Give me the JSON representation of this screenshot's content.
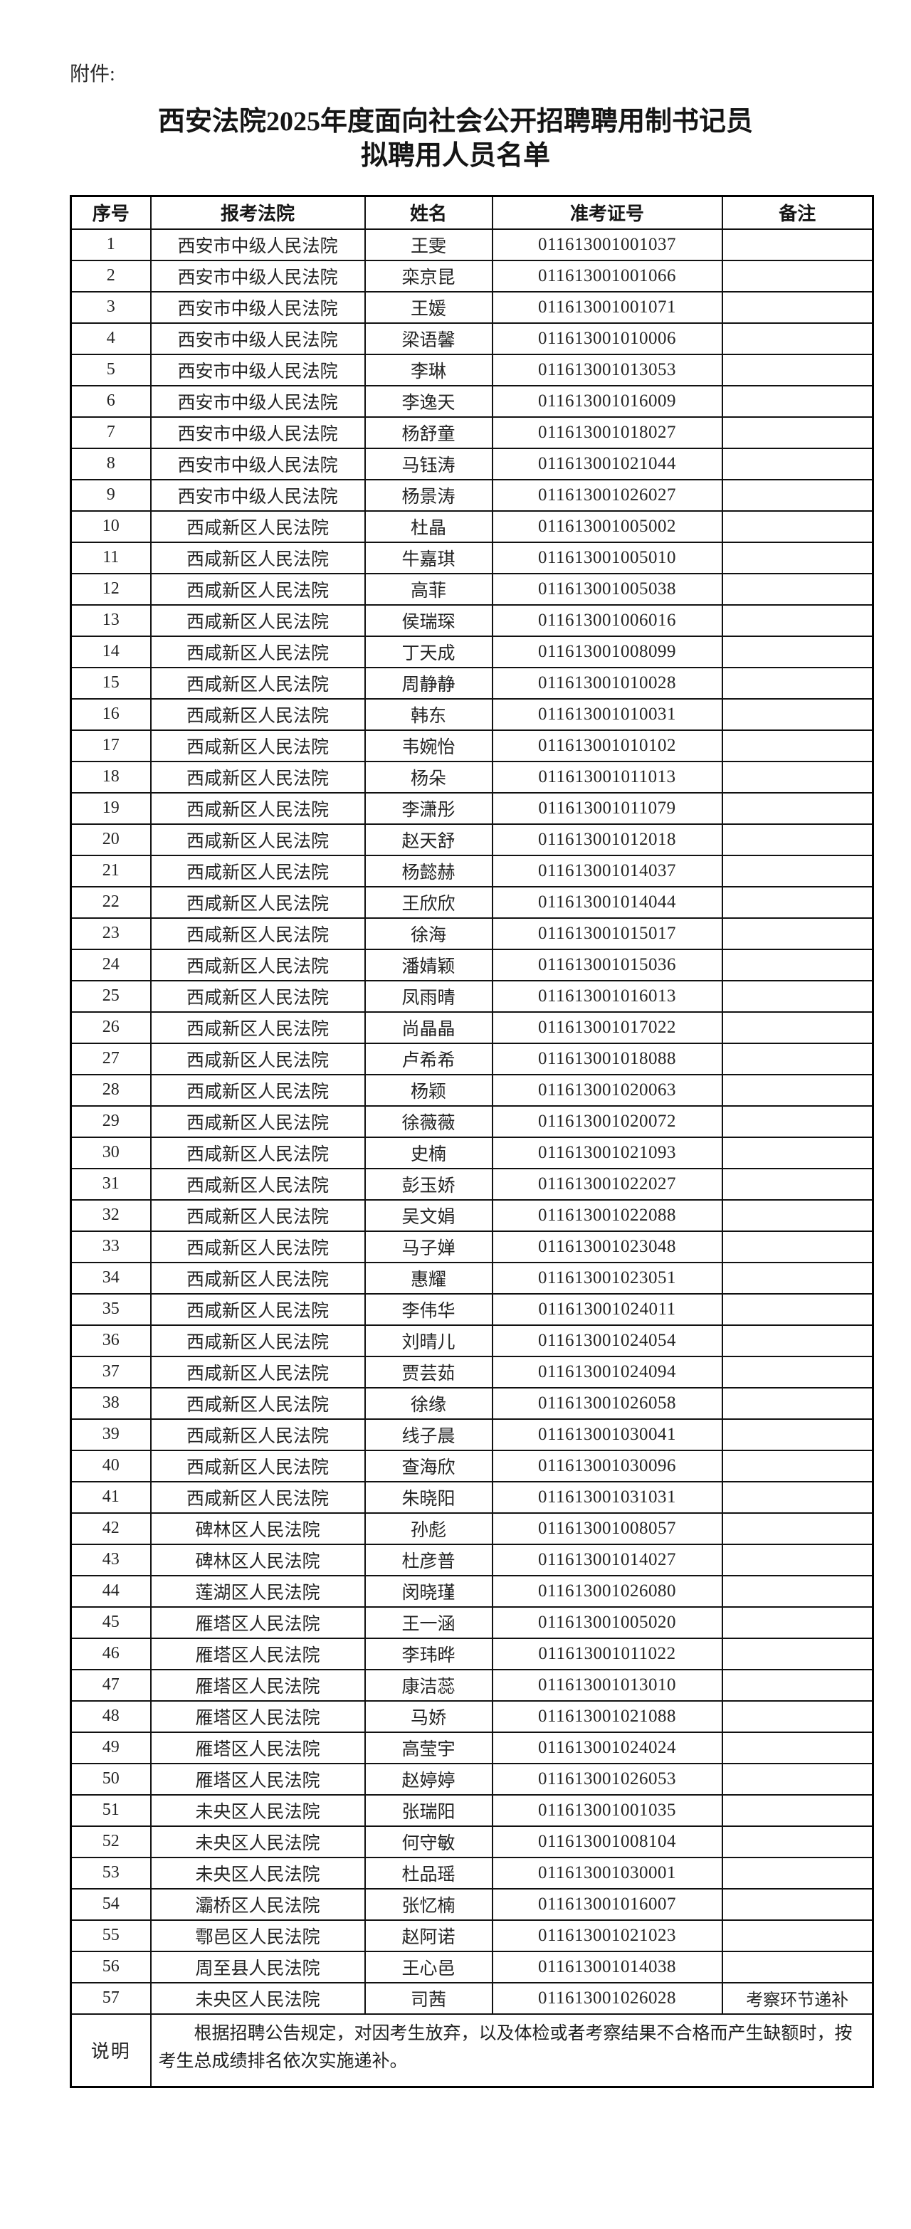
{
  "page": {
    "attachment_label": "附件:",
    "title_line1": "西安法院2025年度面向社会公开招聘聘用制书记员",
    "title_line2": "拟聘用人员名单"
  },
  "colors": {
    "background": "#ffffff",
    "text": "#1c1c1c",
    "border": "#111111"
  },
  "table": {
    "headers": [
      "序号",
      "报考法院",
      "姓名",
      "准考证号",
      "备注"
    ],
    "rows": [
      [
        "1",
        "西安市中级人民法院",
        "王雯",
        "011613001001037",
        ""
      ],
      [
        "2",
        "西安市中级人民法院",
        "栾京昆",
        "011613001001066",
        ""
      ],
      [
        "3",
        "西安市中级人民法院",
        "王媛",
        "011613001001071",
        ""
      ],
      [
        "4",
        "西安市中级人民法院",
        "梁语馨",
        "011613001010006",
        ""
      ],
      [
        "5",
        "西安市中级人民法院",
        "李琳",
        "011613001013053",
        ""
      ],
      [
        "6",
        "西安市中级人民法院",
        "李逸天",
        "011613001016009",
        ""
      ],
      [
        "7",
        "西安市中级人民法院",
        "杨舒童",
        "011613001018027",
        ""
      ],
      [
        "8",
        "西安市中级人民法院",
        "马钰涛",
        "011613001021044",
        ""
      ],
      [
        "9",
        "西安市中级人民法院",
        "杨景涛",
        "011613001026027",
        ""
      ],
      [
        "10",
        "西咸新区人民法院",
        "杜晶",
        "011613001005002",
        ""
      ],
      [
        "11",
        "西咸新区人民法院",
        "牛嘉琪",
        "011613001005010",
        ""
      ],
      [
        "12",
        "西咸新区人民法院",
        "高菲",
        "011613001005038",
        ""
      ],
      [
        "13",
        "西咸新区人民法院",
        "侯瑞琛",
        "011613001006016",
        ""
      ],
      [
        "14",
        "西咸新区人民法院",
        "丁天成",
        "011613001008099",
        ""
      ],
      [
        "15",
        "西咸新区人民法院",
        "周静静",
        "011613001010028",
        ""
      ],
      [
        "16",
        "西咸新区人民法院",
        "韩东",
        "011613001010031",
        ""
      ],
      [
        "17",
        "西咸新区人民法院",
        "韦婉怡",
        "011613001010102",
        ""
      ],
      [
        "18",
        "西咸新区人民法院",
        "杨朵",
        "011613001011013",
        ""
      ],
      [
        "19",
        "西咸新区人民法院",
        "李潇彤",
        "011613001011079",
        ""
      ],
      [
        "20",
        "西咸新区人民法院",
        "赵天舒",
        "011613001012018",
        ""
      ],
      [
        "21",
        "西咸新区人民法院",
        "杨懿赫",
        "011613001014037",
        ""
      ],
      [
        "22",
        "西咸新区人民法院",
        "王欣欣",
        "011613001014044",
        ""
      ],
      [
        "23",
        "西咸新区人民法院",
        "徐海",
        "011613001015017",
        ""
      ],
      [
        "24",
        "西咸新区人民法院",
        "潘婧颖",
        "011613001015036",
        ""
      ],
      [
        "25",
        "西咸新区人民法院",
        "凤雨晴",
        "011613001016013",
        ""
      ],
      [
        "26",
        "西咸新区人民法院",
        "尚晶晶",
        "011613001017022",
        ""
      ],
      [
        "27",
        "西咸新区人民法院",
        "卢希希",
        "011613001018088",
        ""
      ],
      [
        "28",
        "西咸新区人民法院",
        "杨颖",
        "011613001020063",
        ""
      ],
      [
        "29",
        "西咸新区人民法院",
        "徐薇薇",
        "011613001020072",
        ""
      ],
      [
        "30",
        "西咸新区人民法院",
        "史楠",
        "011613001021093",
        ""
      ],
      [
        "31",
        "西咸新区人民法院",
        "彭玉娇",
        "011613001022027",
        ""
      ],
      [
        "32",
        "西咸新区人民法院",
        "吴文娟",
        "011613001022088",
        ""
      ],
      [
        "33",
        "西咸新区人民法院",
        "马子婵",
        "011613001023048",
        ""
      ],
      [
        "34",
        "西咸新区人民法院",
        "惠耀",
        "011613001023051",
        ""
      ],
      [
        "35",
        "西咸新区人民法院",
        "李伟华",
        "011613001024011",
        ""
      ],
      [
        "36",
        "西咸新区人民法院",
        "刘晴儿",
        "011613001024054",
        ""
      ],
      [
        "37",
        "西咸新区人民法院",
        "贾芸茹",
        "011613001024094",
        ""
      ],
      [
        "38",
        "西咸新区人民法院",
        "徐缘",
        "011613001026058",
        ""
      ],
      [
        "39",
        "西咸新区人民法院",
        "线子晨",
        "011613001030041",
        ""
      ],
      [
        "40",
        "西咸新区人民法院",
        "查海欣",
        "011613001030096",
        ""
      ],
      [
        "41",
        "西咸新区人民法院",
        "朱晓阳",
        "011613001031031",
        ""
      ],
      [
        "42",
        "碑林区人民法院",
        "孙彪",
        "011613001008057",
        ""
      ],
      [
        "43",
        "碑林区人民法院",
        "杜彦普",
        "011613001014027",
        ""
      ],
      [
        "44",
        "莲湖区人民法院",
        "闵晓瑾",
        "011613001026080",
        ""
      ],
      [
        "45",
        "雁塔区人民法院",
        "王一涵",
        "011613001005020",
        ""
      ],
      [
        "46",
        "雁塔区人民法院",
        "李玮晔",
        "011613001011022",
        ""
      ],
      [
        "47",
        "雁塔区人民法院",
        "康洁蕊",
        "011613001013010",
        ""
      ],
      [
        "48",
        "雁塔区人民法院",
        "马娇",
        "011613001021088",
        ""
      ],
      [
        "49",
        "雁塔区人民法院",
        "高莹宇",
        "011613001024024",
        ""
      ],
      [
        "50",
        "雁塔区人民法院",
        "赵婷婷",
        "011613001026053",
        ""
      ],
      [
        "51",
        "未央区人民法院",
        "张瑞阳",
        "011613001001035",
        ""
      ],
      [
        "52",
        "未央区人民法院",
        "何守敏",
        "011613001008104",
        ""
      ],
      [
        "53",
        "未央区人民法院",
        "杜品瑶",
        "011613001030001",
        ""
      ],
      [
        "54",
        "灞桥区人民法院",
        "张忆楠",
        "011613001016007",
        ""
      ],
      [
        "55",
        "鄠邑区人民法院",
        "赵阿诺",
        "011613001021023",
        ""
      ],
      [
        "56",
        "周至县人民法院",
        "王心邑",
        "011613001014038",
        ""
      ],
      [
        "57",
        "未央区人民法院",
        "司茜",
        "011613001026028",
        "考察环节递补"
      ]
    ],
    "note_label": "说明",
    "note_text": "根据招聘公告规定，对因考生放弃，以及体检或者考察结果不合格而产生缺额时，按考生总成绩排名依次实施递补。"
  }
}
